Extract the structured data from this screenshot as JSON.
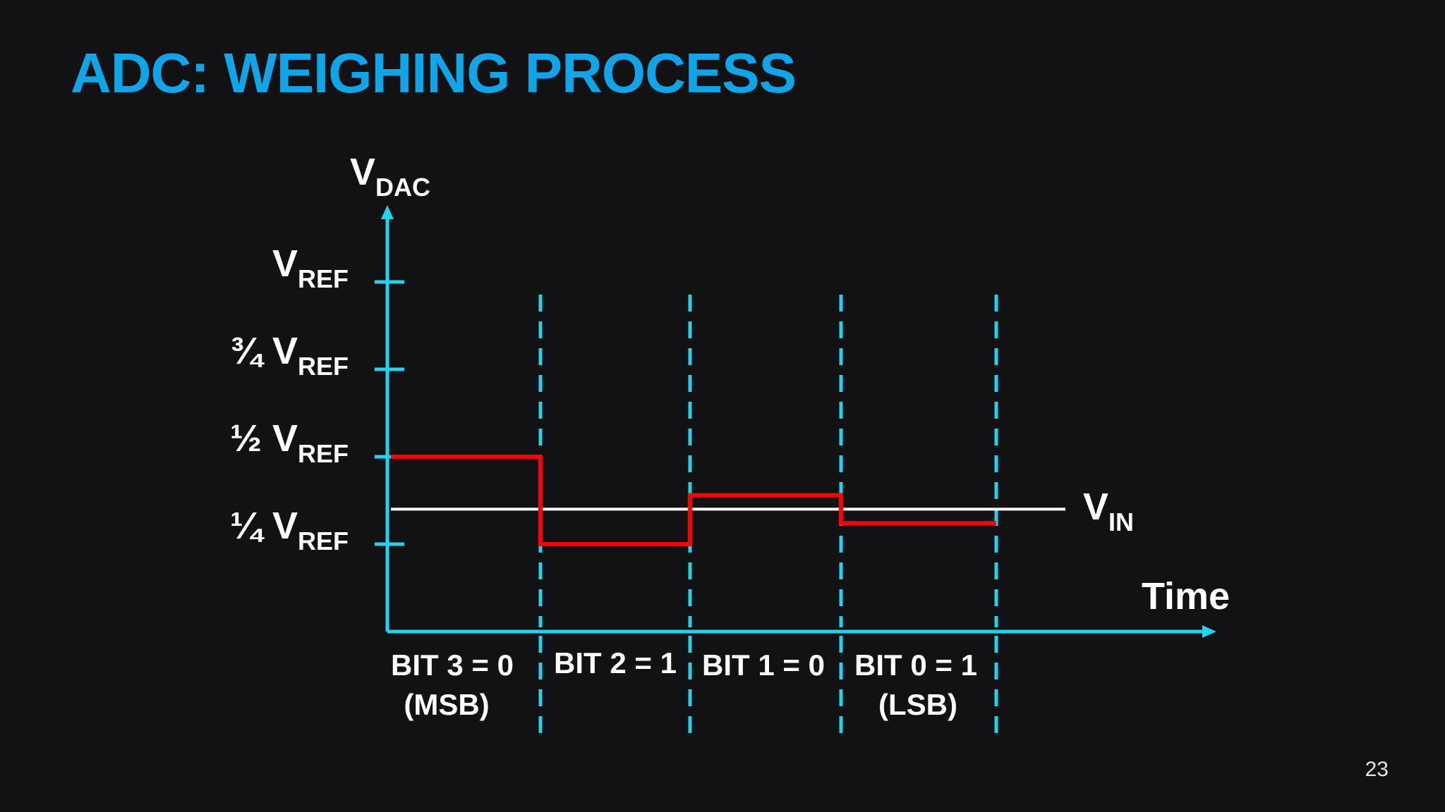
{
  "slide": {
    "title": "ADC: WEIGHING PROCESS",
    "page_number": "23"
  },
  "diagram": {
    "y_axis": {
      "main": "V",
      "sub": "DAC"
    },
    "x_axis_label": "Time",
    "vin_label": {
      "main": "V",
      "sub": "IN"
    },
    "y_ticks": [
      {
        "prefix": "",
        "main": "V",
        "sub": "REF",
        "fraction": 1.0
      },
      {
        "prefix": "¾ ",
        "main": "V",
        "sub": "REF",
        "fraction": 0.75
      },
      {
        "prefix": "½ ",
        "main": "V",
        "sub": "REF",
        "fraction": 0.5
      },
      {
        "prefix": "¼ ",
        "main": "V",
        "sub": "REF",
        "fraction": 0.25
      }
    ],
    "vin_fraction": 0.35,
    "dac_steps_fraction": [
      0.5,
      0.25,
      0.39,
      0.31
    ],
    "bits": [
      {
        "label": "BIT 3 = 0",
        "note": "(MSB)"
      },
      {
        "label": "BIT 2 = 1",
        "note": ""
      },
      {
        "label": "BIT 1 = 0",
        "note": ""
      },
      {
        "label": "BIT 0 = 1",
        "note": "(LSB)"
      }
    ],
    "colors": {
      "axis": "#22d3ee",
      "dac": "#ff0000",
      "vin": "#ffffff",
      "title": "#0ea5e9"
    }
  }
}
